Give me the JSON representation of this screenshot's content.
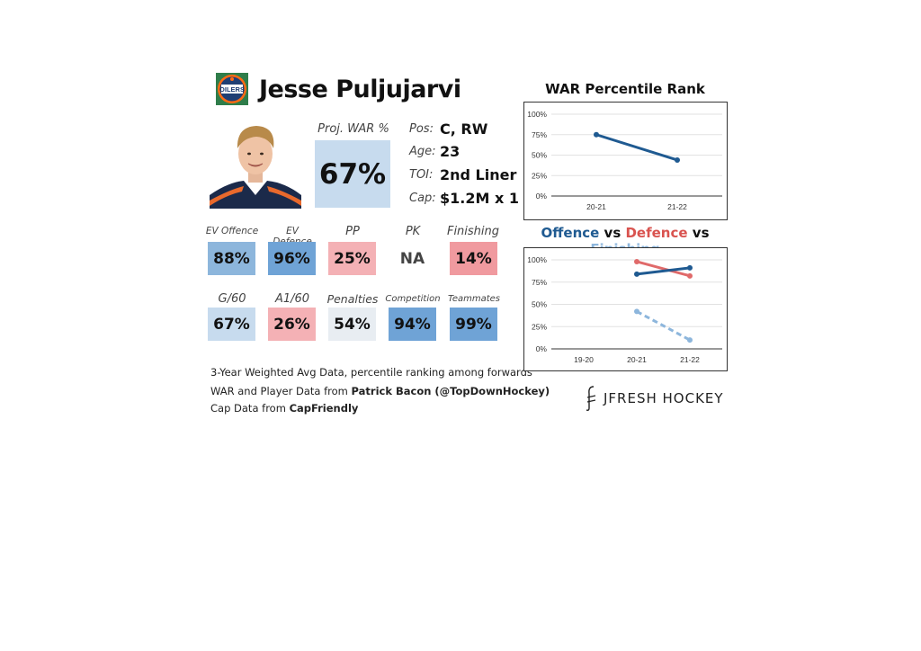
{
  "player": {
    "name": "Jesse Puljujarvi",
    "team_logo_text": "OILERS"
  },
  "proj": {
    "label": "Proj. WAR %",
    "value": "67%"
  },
  "info": [
    {
      "label": "Pos:",
      "value": "C, RW"
    },
    {
      "label": "Age:",
      "value": "23"
    },
    {
      "label": "TOI:",
      "value": "2nd Liner"
    },
    {
      "label": "Cap:",
      "value": "$1.2M x 1"
    }
  ],
  "stats_row1": [
    {
      "label": "EV Offence",
      "value": "88%",
      "color": "#8db6dc"
    },
    {
      "label": "EV Defence",
      "value": "96%",
      "color": "#6fa3d6"
    },
    {
      "label": "PP",
      "value": "25%",
      "color": "#f4b1b5"
    },
    {
      "label": "PK",
      "value": "NA",
      "color": "#ffffff"
    },
    {
      "label": "Finishing",
      "value": "14%",
      "color": "#f09a9f"
    }
  ],
  "stats_row2": [
    {
      "label": "G/60",
      "value": "67%",
      "color": "#c7dbee"
    },
    {
      "label": "A1/60",
      "value": "26%",
      "color": "#f4b1b5"
    },
    {
      "label": "Penalties",
      "value": "54%",
      "color": "#e8edf2"
    },
    {
      "label": "Competition",
      "value": "94%",
      "color": "#6fa3d6"
    },
    {
      "label": "Teammates",
      "value": "99%",
      "color": "#6fa3d6"
    }
  ],
  "notes": {
    "line1": "3-Year Weighted Avg Data, percentile ranking among forwards",
    "line2_prefix": "WAR and Player Data from ",
    "line2_bold": "Patrick Bacon (@TopDownHockey)",
    "line3_prefix": "Cap Data from ",
    "line3_bold": "CapFriendly"
  },
  "brand": "JFRESH HOCKEY",
  "chart_data": [
    {
      "type": "line",
      "title": "WAR Percentile Rank",
      "x": [
        "20-21",
        "21-22"
      ],
      "ylim": [
        0,
        100
      ],
      "yticks": [
        "0%",
        "25%",
        "50%",
        "75%",
        "100%"
      ],
      "series": [
        {
          "values": [
            75,
            44
          ],
          "color": "#1f5a91"
        }
      ]
    },
    {
      "type": "line",
      "title_parts": [
        {
          "text": "Offence",
          "color": "#1f5a91"
        },
        {
          "text": " vs ",
          "color": "#111111"
        },
        {
          "text": "Defence",
          "color": "#d9534f"
        },
        {
          "text": " vs ",
          "color": "#111111"
        },
        {
          "text": "Finishing",
          "color": "#8db6dc"
        }
      ],
      "x": [
        "19-20",
        "20-21",
        "21-22"
      ],
      "ylim": [
        0,
        100
      ],
      "yticks": [
        "0%",
        "25%",
        "50%",
        "75%",
        "100%"
      ],
      "series": [
        {
          "values": [
            null,
            98,
            82
          ],
          "color": "#e06a6a",
          "dashed": false
        },
        {
          "values": [
            null,
            84,
            91
          ],
          "color": "#1f5a91",
          "dashed": false
        },
        {
          "values": [
            null,
            42,
            10
          ],
          "color": "#8db6dc",
          "dashed": true
        }
      ]
    }
  ]
}
